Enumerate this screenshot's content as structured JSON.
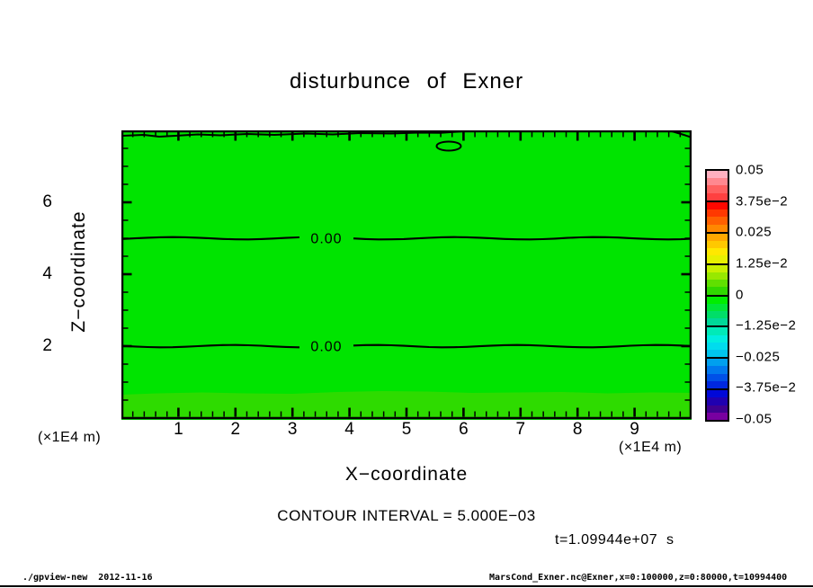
{
  "page": {
    "title": "disturbunce of Exner",
    "footer_left": "./gpview-new  2012-11-16",
    "footer_right": "MarsCond_Exner.nc@Exner,x=0:100000,z=0:80000,t=10994400"
  },
  "chart_data": {
    "type": "contour",
    "title": "disturbunce of Exner",
    "xlabel": "X−coordinate",
    "ylabel": "Z−coordinate",
    "x_unit": "(×1E4 m)",
    "y_unit": "(×1E4 m)",
    "xlim": [
      0,
      10
    ],
    "ylim": [
      0,
      8
    ],
    "x_major_ticks": [
      1,
      2,
      3,
      4,
      5,
      6,
      7,
      8,
      9
    ],
    "x_minor_step": 0.2,
    "y_major_ticks": [
      2,
      4,
      6
    ],
    "y_minor_step": 0.5,
    "grid": false,
    "contour_interval_label": "CONTOUR INTERVAL = 5.000E−03",
    "time_annotation": "t=1.09944e+07  s",
    "contour_lines": [
      {
        "label": "0.00",
        "z": 5.0
      },
      {
        "label": "0.00",
        "z": 2.0
      }
    ],
    "extra_contours": [
      {
        "desc": "unlabeled wiggly contour hugging top edge, z≈7.85, x≈0 to 6.1"
      },
      {
        "desc": "small closed contour blob near x≈5.75, z≈7.55"
      },
      {
        "desc": "short contour segment at top-right corner"
      }
    ],
    "fill": {
      "main": "#00e400",
      "bottom_band": "#2edb00"
    },
    "colorbar": {
      "labels": [
        "0.05",
        "3.75e−2",
        "0.025",
        "1.25e−2",
        "0",
        "−1.25e−2",
        "−0.025",
        "−3.75e−2",
        "−0.05"
      ],
      "segment_colors": [
        [
          "#ffb0c0",
          "#ff8890",
          "#ff6060",
          "#ff4040"
        ],
        [
          "#ff0800",
          "#ff3800",
          "#ff6000",
          "#ff8800"
        ],
        [
          "#ffa800",
          "#ffc800",
          "#ffe800",
          "#e8f000"
        ],
        [
          "#c8f000",
          "#98e800",
          "#60e000",
          "#30d800"
        ],
        [
          "#00ee00",
          "#00e638",
          "#00de68",
          "#00d898"
        ],
        [
          "#00eab8",
          "#00eee0",
          "#00dcee",
          "#00c4ee"
        ],
        [
          "#00a0ee",
          "#0078ee",
          "#0050e8",
          "#0028e0"
        ],
        [
          "#0008d8",
          "#2000b0",
          "#400090",
          "#7800a0"
        ]
      ]
    }
  }
}
